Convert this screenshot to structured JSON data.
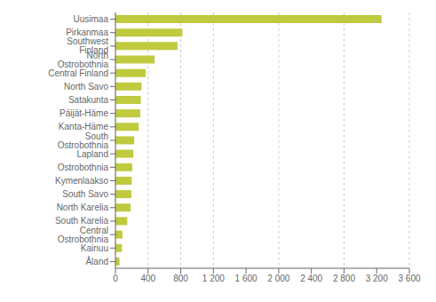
{
  "chart_data": {
    "type": "bar",
    "orientation": "horizontal",
    "categories": [
      "Uusimaa",
      "Pirkanmaa",
      "Southwest Finland",
      "North Ostrobothnia",
      "Central Finland",
      "North Savo",
      "Satakunta",
      "Päijät-Häme",
      "Kanta-Häme",
      "South Ostrobothnia",
      "Lapland",
      "Ostrobothnia",
      "Kymenlaakso",
      "South Savo",
      "North Karelia",
      "South Karelia",
      "Central Ostrobothnia",
      "Kainuu",
      "Åland"
    ],
    "values": [
      3260,
      820,
      760,
      480,
      370,
      320,
      310,
      305,
      285,
      230,
      220,
      205,
      200,
      195,
      185,
      145,
      85,
      80,
      50
    ],
    "color": "#bfca3e",
    "xlim": [
      0,
      3600
    ],
    "xticks": [
      0,
      400,
      800,
      {
        "value": 1200,
        "label": "1 200"
      },
      {
        "value": 1600,
        "label": "1 600"
      },
      {
        "value": 2000,
        "label": "2 000"
      },
      {
        "value": 2400,
        "label": "2 400"
      },
      {
        "value": 2800,
        "label": "2 800"
      },
      {
        "value": 3200,
        "label": "3 200"
      },
      {
        "value": 3600,
        "label": "3 600"
      }
    ],
    "grid": true
  }
}
